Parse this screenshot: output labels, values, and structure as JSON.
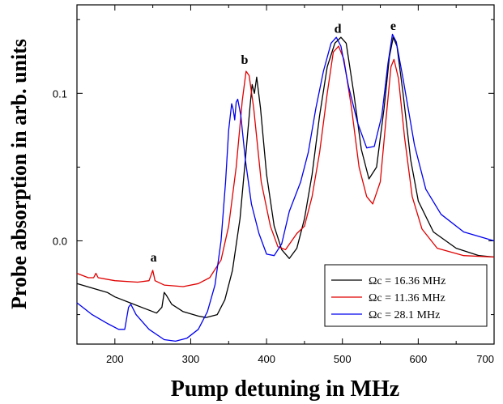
{
  "chart_data": {
    "type": "line",
    "title": "",
    "xlabel": "Pump detuning in MHz",
    "ylabel": "Probe absorption in arb. units",
    "xlim": [
      150,
      700
    ],
    "ylim": [
      -0.07,
      0.16
    ],
    "x_ticks": [
      200,
      300,
      400,
      500,
      600,
      700
    ],
    "x_tick_labels": [
      "200",
      "300",
      "400",
      "500",
      "600",
      "700"
    ],
    "y_ticks": [
      0.0,
      0.1
    ],
    "y_tick_labels": [
      "0.0",
      "0.1"
    ],
    "grid": false,
    "legend_position": "bottom-right",
    "series": [
      {
        "name": "Ωc = 16.36 MHz",
        "color": "#000000",
        "points": [
          [
            150,
            -0.029
          ],
          [
            170,
            -0.032
          ],
          [
            190,
            -0.035
          ],
          [
            200,
            -0.038
          ],
          [
            220,
            -0.042
          ],
          [
            240,
            -0.046
          ],
          [
            255,
            -0.049
          ],
          [
            262,
            -0.045
          ],
          [
            265,
            -0.035
          ],
          [
            268,
            -0.037
          ],
          [
            275,
            -0.043
          ],
          [
            290,
            -0.048
          ],
          [
            310,
            -0.051
          ],
          [
            320,
            -0.052
          ],
          [
            335,
            -0.05
          ],
          [
            345,
            -0.04
          ],
          [
            355,
            -0.02
          ],
          [
            365,
            0.015
          ],
          [
            372,
            0.055
          ],
          [
            378,
            0.09
          ],
          [
            381,
            0.106
          ],
          [
            384,
            0.1
          ],
          [
            387,
            0.111
          ],
          [
            392,
            0.09
          ],
          [
            400,
            0.045
          ],
          [
            410,
            0.01
          ],
          [
            420,
            -0.006
          ],
          [
            430,
            -0.012
          ],
          [
            440,
            -0.005
          ],
          [
            450,
            0.015
          ],
          [
            460,
            0.045
          ],
          [
            470,
            0.085
          ],
          [
            480,
            0.118
          ],
          [
            490,
            0.134
          ],
          [
            498,
            0.138
          ],
          [
            505,
            0.134
          ],
          [
            515,
            0.1
          ],
          [
            525,
            0.062
          ],
          [
            535,
            0.042
          ],
          [
            545,
            0.05
          ],
          [
            555,
            0.09
          ],
          [
            562,
            0.125
          ],
          [
            567,
            0.138
          ],
          [
            572,
            0.132
          ],
          [
            580,
            0.1
          ],
          [
            590,
            0.055
          ],
          [
            600,
            0.027
          ],
          [
            620,
            0.006
          ],
          [
            650,
            -0.005
          ],
          [
            680,
            -0.01
          ],
          [
            700,
            -0.011
          ]
        ]
      },
      {
        "name": "Ωc = 11.36 MHz",
        "color": "#e00000",
        "points": [
          [
            150,
            -0.022
          ],
          [
            165,
            -0.025
          ],
          [
            172,
            -0.025
          ],
          [
            175,
            -0.022
          ],
          [
            178,
            -0.025
          ],
          [
            200,
            -0.027
          ],
          [
            230,
            -0.028
          ],
          [
            245,
            -0.027
          ],
          [
            250,
            -0.02
          ],
          [
            253,
            -0.027
          ],
          [
            265,
            -0.03
          ],
          [
            290,
            -0.031
          ],
          [
            310,
            -0.029
          ],
          [
            325,
            -0.025
          ],
          [
            340,
            -0.013
          ],
          [
            350,
            0.01
          ],
          [
            360,
            0.05
          ],
          [
            368,
            0.095
          ],
          [
            373,
            0.115
          ],
          [
            377,
            0.112
          ],
          [
            383,
            0.09
          ],
          [
            393,
            0.04
          ],
          [
            405,
            0.01
          ],
          [
            415,
            -0.004
          ],
          [
            425,
            -0.006
          ],
          [
            440,
            0.005
          ],
          [
            450,
            0.01
          ],
          [
            460,
            0.03
          ],
          [
            470,
            0.06
          ],
          [
            480,
            0.1
          ],
          [
            488,
            0.128
          ],
          [
            495,
            0.132
          ],
          [
            502,
            0.123
          ],
          [
            512,
            0.09
          ],
          [
            522,
            0.05
          ],
          [
            532,
            0.03
          ],
          [
            540,
            0.025
          ],
          [
            550,
            0.04
          ],
          [
            558,
            0.085
          ],
          [
            564,
            0.118
          ],
          [
            568,
            0.123
          ],
          [
            574,
            0.11
          ],
          [
            582,
            0.07
          ],
          [
            592,
            0.03
          ],
          [
            605,
            0.008
          ],
          [
            625,
            -0.005
          ],
          [
            660,
            -0.01
          ],
          [
            700,
            -0.011
          ]
        ]
      },
      {
        "name": "Ωc = 28.1 MHz",
        "color": "#0000ee",
        "points": [
          [
            150,
            -0.042
          ],
          [
            170,
            -0.05
          ],
          [
            190,
            -0.056
          ],
          [
            205,
            -0.06
          ],
          [
            213,
            -0.06
          ],
          [
            218,
            -0.045
          ],
          [
            221,
            -0.043
          ],
          [
            228,
            -0.05
          ],
          [
            245,
            -0.06
          ],
          [
            265,
            -0.067
          ],
          [
            280,
            -0.068
          ],
          [
            295,
            -0.066
          ],
          [
            310,
            -0.06
          ],
          [
            322,
            -0.048
          ],
          [
            332,
            -0.03
          ],
          [
            340,
            0.0
          ],
          [
            346,
            0.04
          ],
          [
            350,
            0.075
          ],
          [
            354,
            0.093
          ],
          [
            356,
            0.089
          ],
          [
            358,
            0.082
          ],
          [
            360,
            0.094
          ],
          [
            362,
            0.096
          ],
          [
            366,
            0.085
          ],
          [
            372,
            0.055
          ],
          [
            380,
            0.025
          ],
          [
            390,
            0.005
          ],
          [
            400,
            -0.009
          ],
          [
            410,
            -0.01
          ],
          [
            420,
            -0.002
          ],
          [
            430,
            0.02
          ],
          [
            445,
            0.04
          ],
          [
            455,
            0.06
          ],
          [
            465,
            0.09
          ],
          [
            475,
            0.115
          ],
          [
            485,
            0.134
          ],
          [
            492,
            0.138
          ],
          [
            498,
            0.132
          ],
          [
            508,
            0.105
          ],
          [
            520,
            0.08
          ],
          [
            532,
            0.063
          ],
          [
            542,
            0.064
          ],
          [
            552,
            0.085
          ],
          [
            560,
            0.12
          ],
          [
            566,
            0.14
          ],
          [
            571,
            0.135
          ],
          [
            580,
            0.11
          ],
          [
            595,
            0.065
          ],
          [
            610,
            0.035
          ],
          [
            630,
            0.018
          ],
          [
            660,
            0.006
          ],
          [
            700,
            0.0
          ]
        ]
      }
    ],
    "annotations": [
      {
        "text": "a",
        "x": 251,
        "y": -0.014
      },
      {
        "text": "b",
        "x": 371,
        "y": 0.12
      },
      {
        "text": "d",
        "x": 494,
        "y": 0.141
      },
      {
        "text": "e",
        "x": 567,
        "y": 0.143
      }
    ]
  }
}
